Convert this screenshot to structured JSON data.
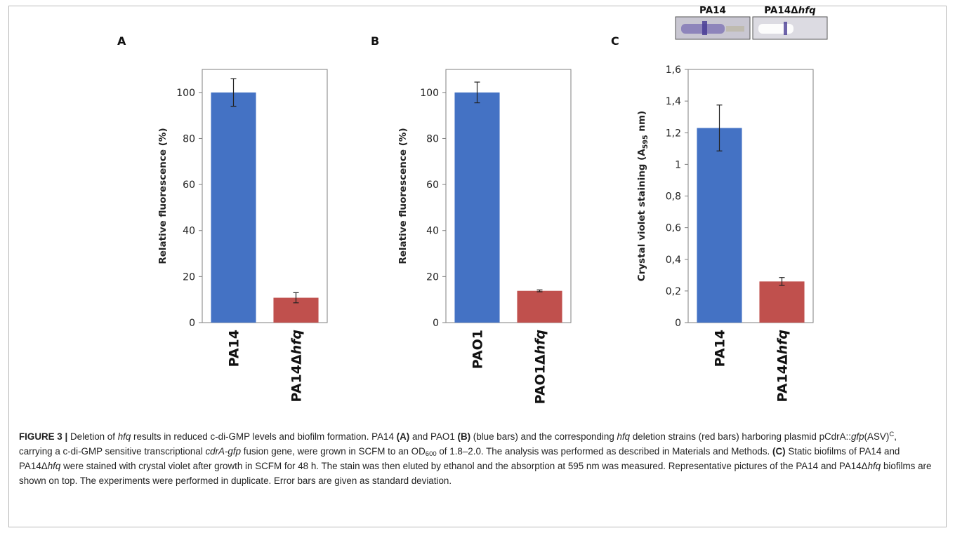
{
  "chart_data": [
    {
      "type": "bar",
      "panel_label": "A",
      "ylabel": "Relative fluorescence (%)",
      "ylim": [
        0,
        110
      ],
      "yticks": [
        0,
        20,
        40,
        60,
        80,
        100
      ],
      "ytick_labels": [
        "0",
        "20",
        "40",
        "60",
        "80",
        "100"
      ],
      "categories": [
        {
          "main": "PA14",
          "italic": ""
        },
        {
          "main": "PA14Δ",
          "italic": "hfq"
        }
      ],
      "values": [
        100,
        10.8
      ],
      "errors": [
        6,
        2.2
      ],
      "bar_colors": [
        "#4472C4",
        "#C0504D"
      ],
      "grid": false
    },
    {
      "type": "bar",
      "panel_label": "B",
      "ylabel": "Relative fluorescence (%)",
      "ylim": [
        0,
        110
      ],
      "yticks": [
        0,
        20,
        40,
        60,
        80,
        100
      ],
      "ytick_labels": [
        "0",
        "20",
        "40",
        "60",
        "80",
        "100"
      ],
      "categories": [
        {
          "main": "PAO1",
          "italic": ""
        },
        {
          "main": "PAO1Δ",
          "italic": "hfq"
        }
      ],
      "values": [
        100,
        13.8
      ],
      "errors": [
        4.5,
        0.4
      ],
      "bar_colors": [
        "#4472C4",
        "#C0504D"
      ],
      "grid": false
    },
    {
      "type": "bar",
      "panel_label": "C",
      "ylabel_main": "Crystal violet staining (A",
      "ylabel_sub": "595",
      "ylabel_tail": " nm)",
      "ylim": [
        0,
        1.6
      ],
      "yticks": [
        0,
        0.2,
        0.4,
        0.6,
        0.8,
        1.0,
        1.2,
        1.4,
        1.6
      ],
      "ytick_labels": [
        "0",
        "0,2",
        "0,4",
        "0,6",
        "0,8",
        "1",
        "1,2",
        "1,4",
        "1,6"
      ],
      "categories": [
        {
          "main": "PA14",
          "italic": ""
        },
        {
          "main": "PA14Δ",
          "italic": "hfq"
        }
      ],
      "values": [
        1.23,
        0.26
      ],
      "errors": [
        0.145,
        0.025
      ],
      "bar_colors": [
        "#4472C4",
        "#C0504D"
      ],
      "grid": false,
      "photo_labels": [
        {
          "main": "PA14",
          "italic": ""
        },
        {
          "main": "PA14Δ",
          "italic": "hfq"
        }
      ]
    }
  ],
  "caption": {
    "label": "FIGURE 3 |",
    "runs": [
      {
        "t": " Deletion of "
      },
      {
        "t": "hfq",
        "i": true
      },
      {
        "t": " results in reduced c-di-GMP levels and biofilm formation. PA14 "
      },
      {
        "t": "(A)",
        "b": true
      },
      {
        "t": " and PAO1 "
      },
      {
        "t": "(B)",
        "b": true
      },
      {
        "t": " (blue bars) and the corresponding "
      },
      {
        "t": "hfq",
        "i": true
      },
      {
        "t": " deletion strains (red bars) harboring plasmid pCdrA::"
      },
      {
        "t": "gfp",
        "i": true
      },
      {
        "t": "(ASV)"
      },
      {
        "t": "C",
        "sup": true
      },
      {
        "t": ", carrying a c-di-GMP sensitive transcriptional "
      },
      {
        "t": "cdrA-gfp",
        "i": true
      },
      {
        "t": " fusion gene, were grown in SCFM to an OD"
      },
      {
        "t": "600",
        "sub": true
      },
      {
        "t": " of 1.8–2.0. The analysis was performed as described in Materials and Methods. "
      },
      {
        "t": "(C)",
        "b": true
      },
      {
        "t": " Static biofilms of PA14 and PA14Δ"
      },
      {
        "t": "hfq",
        "i": true
      },
      {
        "t": " were stained with crystal violet after growth in SCFM for 48 h. The stain was then eluted by ethanol and the absorption at 595 nm was measured. Representative pictures of the PA14 and PA14Δ"
      },
      {
        "t": "hfq",
        "i": true
      },
      {
        "t": " biofilms are shown on top. The experiments were performed in duplicate. Error bars are given as standard deviation."
      }
    ]
  }
}
